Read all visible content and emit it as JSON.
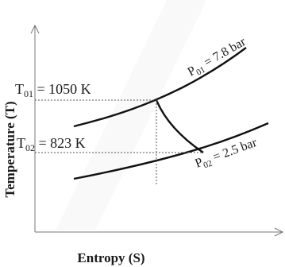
{
  "diagram": {
    "x_axis_label": "Entropy (S)",
    "y_axis_label": "Temperature (T)",
    "isobars": [
      {
        "id": "high",
        "symbol": "P",
        "subscript": "01",
        "value_text": " = 7.8 bar"
      },
      {
        "id": "low",
        "symbol": "P",
        "subscript": "02",
        "value_text": " = 2.5 bar"
      }
    ],
    "temperatures": [
      {
        "id": "inlet",
        "symbol": "T",
        "subscript": "01",
        "value_text": " = 1050 K"
      },
      {
        "id": "outlet",
        "symbol": "T",
        "subscript": "02",
        "value_text": " = 823 K"
      }
    ]
  }
}
